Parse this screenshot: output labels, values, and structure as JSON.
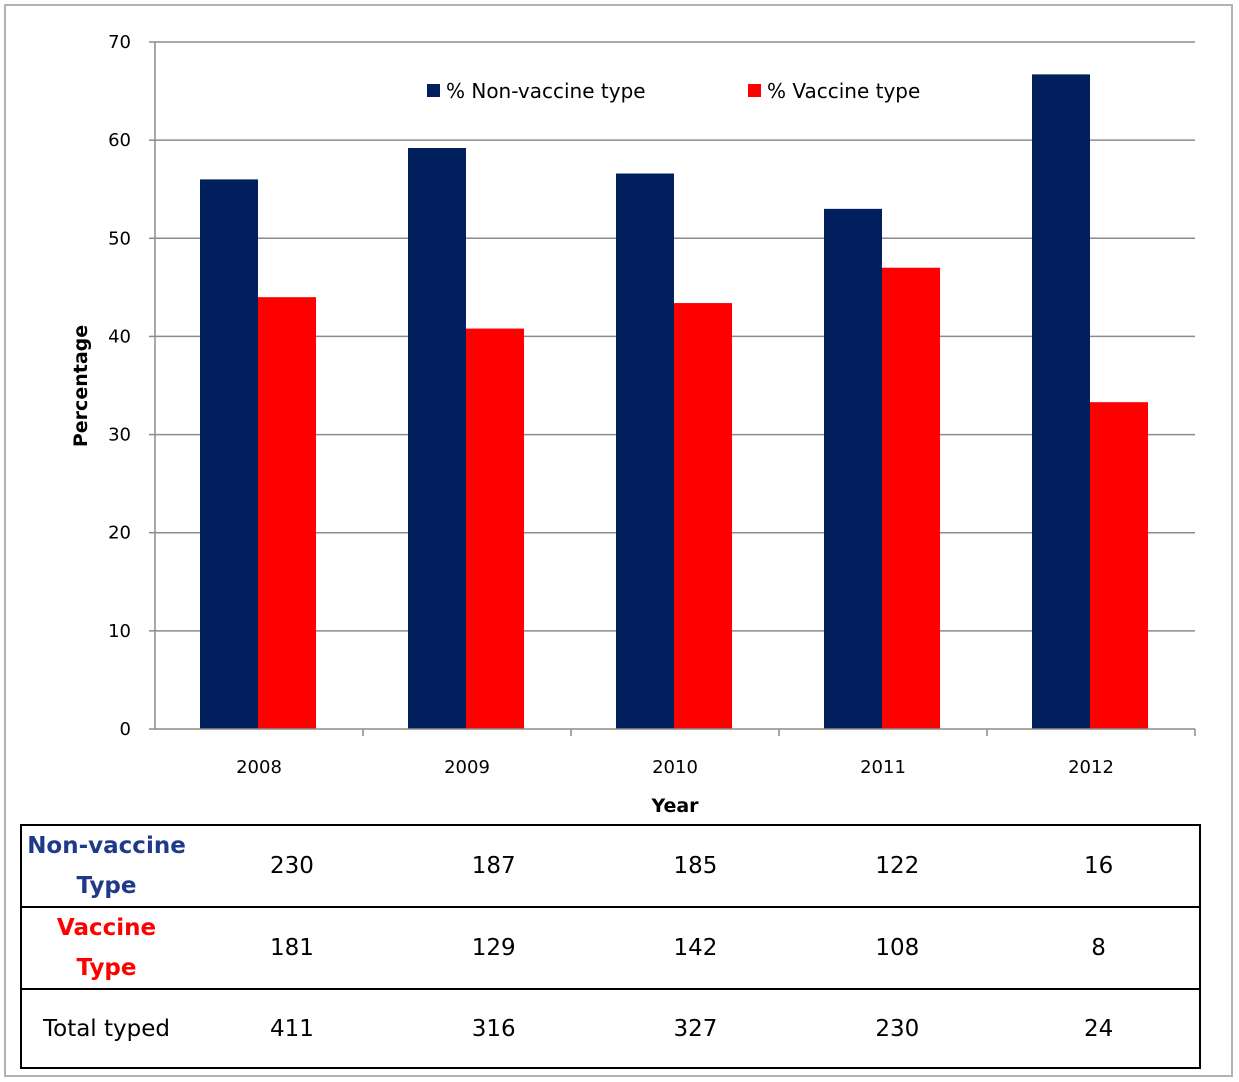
{
  "chart_data": {
    "type": "bar",
    "title": "",
    "xlabel": "Year",
    "ylabel": "Percentage",
    "ylim": [
      0,
      70
    ],
    "yticks": [
      0,
      10,
      20,
      30,
      40,
      50,
      60,
      70
    ],
    "grid": true,
    "legend_position": "top-center",
    "categories": [
      "2008",
      "2009",
      "2010",
      "2011",
      "2012"
    ],
    "series": [
      {
        "name": "% Non-vaccine type",
        "color": "#001f5c",
        "values": [
          56.0,
          59.2,
          56.6,
          53.0,
          66.7
        ]
      },
      {
        "name": "% Vaccine type",
        "color": "#ff0000",
        "values": [
          44.0,
          40.8,
          43.4,
          47.0,
          33.3
        ]
      }
    ]
  },
  "table": {
    "rows": [
      {
        "label_line1": "Non-vaccine",
        "label_line2": "Type",
        "values": [
          "230",
          "187",
          "185",
          "122",
          "16"
        ]
      },
      {
        "label_line1": "Vaccine",
        "label_line2": "Type",
        "values": [
          "181",
          "129",
          "142",
          "108",
          "8"
        ]
      },
      {
        "label_line1": "Total typed",
        "label_line2": "",
        "values": [
          "411",
          "316",
          "327",
          "230",
          "24"
        ]
      }
    ]
  }
}
